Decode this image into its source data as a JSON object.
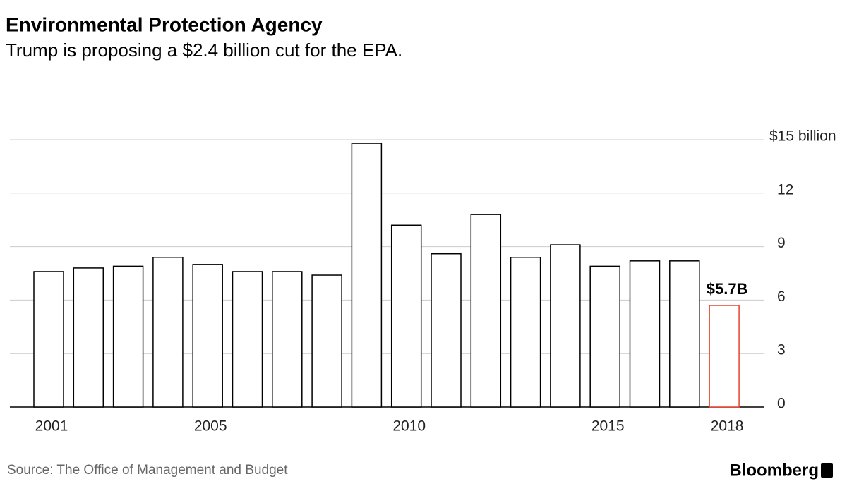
{
  "chart_data": {
    "type": "bar",
    "title": "Environmental Protection Agency",
    "subtitle": "Trump is proposing a $2.4 billion cut for the EPA.",
    "categories": [
      "2001",
      null,
      null,
      null,
      "2005",
      null,
      null,
      null,
      null,
      "2010",
      null,
      null,
      null,
      null,
      "2015",
      null,
      null,
      "2018"
    ],
    "values": [
      7.6,
      7.8,
      7.9,
      8.4,
      8.0,
      7.6,
      7.6,
      7.4,
      14.8,
      10.2,
      8.6,
      10.8,
      8.4,
      9.1,
      7.9,
      8.2,
      8.2,
      5.7
    ],
    "value_labels": [
      null,
      null,
      null,
      null,
      null,
      null,
      null,
      null,
      null,
      null,
      null,
      null,
      null,
      null,
      null,
      null,
      null,
      "$5.7B"
    ],
    "colors": [
      "#000000",
      "#000000",
      "#000000",
      "#000000",
      "#000000",
      "#000000",
      "#000000",
      "#000000",
      "#000000",
      "#000000",
      "#000000",
      "#000000",
      "#000000",
      "#000000",
      "#000000",
      "#000000",
      "#000000",
      "#e8412c"
    ],
    "ylim": [
      0,
      15
    ],
    "yticks": [
      0,
      3,
      6,
      9,
      12,
      {
        "value": 15,
        "label": "$15 billion"
      }
    ],
    "grid": true,
    "source": "Source: The Office of Management and Budget",
    "logo": "Bloomberg"
  }
}
